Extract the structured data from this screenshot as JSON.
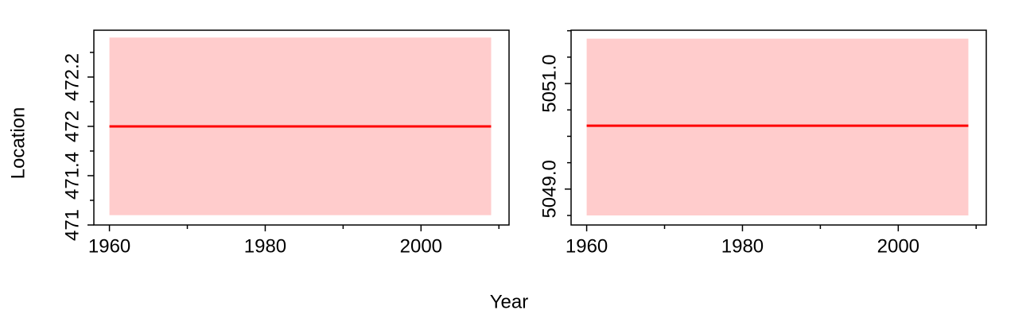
{
  "chart_data": [
    {
      "type": "line",
      "xlabel": "Year",
      "ylabel": "Location",
      "x": [
        1960,
        2009
      ],
      "series": [
        {
          "color": "#ff0000",
          "values": [
            471.8,
            471.8
          ]
        }
      ],
      "band_color": "#ffcccc",
      "band_lower": [
        471.08,
        471.08
      ],
      "band_upper": [
        472.52,
        472.52
      ],
      "xlim": [
        1958,
        2011.3
      ],
      "xticks": [
        1960,
        1980,
        2000
      ],
      "xminorticks": [
        1970,
        1990,
        2010
      ],
      "ylim": [
        471.0,
        472.58
      ],
      "yticks": [
        {
          "value": 471.0,
          "label": "471"
        },
        471.4,
        {
          "value": 471.8,
          "label": "472"
        },
        472.2
      ],
      "yminorticks": [
        471.2,
        471.6,
        472.0,
        472.4
      ]
    },
    {
      "type": "line",
      "x": [
        1960,
        2009
      ],
      "series": [
        {
          "color": "#ff0000",
          "values": [
            5050.2,
            5050.2
          ]
        }
      ],
      "band_color": "#ffcccc",
      "band_lower": [
        5048.5,
        5048.5
      ],
      "band_upper": [
        5051.85,
        5051.85
      ],
      "xlim": [
        1958,
        2011.3
      ],
      "xticks": [
        1960,
        1980,
        2000
      ],
      "xminorticks": [
        1970,
        1990,
        2010
      ],
      "ylim": [
        5048.32,
        5052.01
      ],
      "yticks": [
        {
          "value": 5049.0,
          "label": "5049.0"
        },
        {
          "value": 5051.0,
          "label": "5051.0"
        }
      ],
      "yminorticks": [
        5048.5,
        5049.5,
        5050.0,
        5050.5,
        5051.5,
        5052.0
      ]
    }
  ]
}
